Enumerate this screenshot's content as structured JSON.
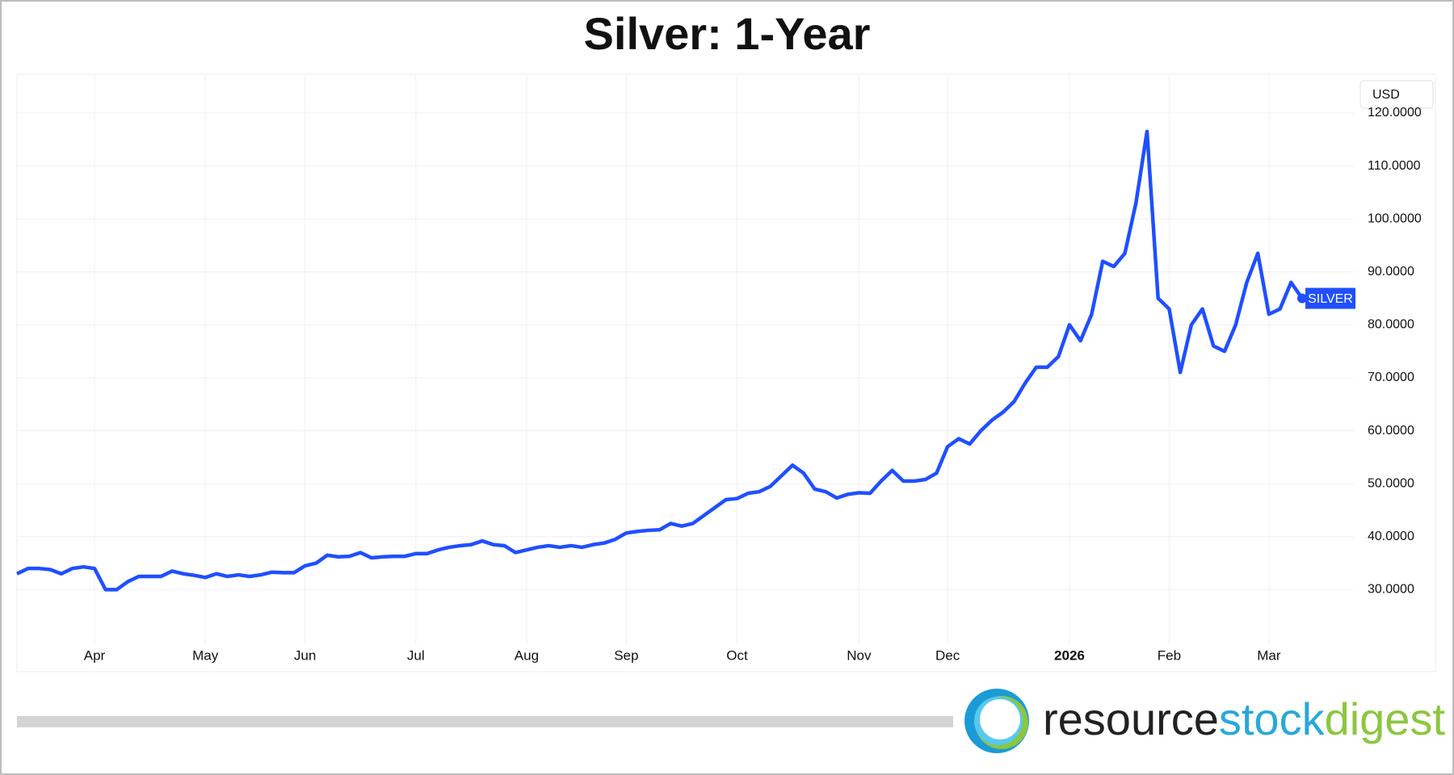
{
  "chart_data": {
    "type": "line",
    "title": "Silver: 1-Year",
    "categories": [
      null,
      null,
      null,
      null,
      null,
      null,
      null,
      "Apr",
      null,
      null,
      null,
      null,
      null,
      null,
      null,
      null,
      null,
      "May",
      null,
      null,
      null,
      null,
      null,
      null,
      null,
      null,
      "Jun",
      null,
      null,
      null,
      null,
      null,
      null,
      null,
      null,
      null,
      "Jul",
      null,
      null,
      null,
      null,
      null,
      null,
      null,
      null,
      null,
      "Aug",
      null,
      null,
      null,
      null,
      null,
      null,
      null,
      null,
      "Sep",
      null,
      null,
      null,
      null,
      null,
      null,
      null,
      null,
      null,
      "Oct",
      null,
      null,
      null,
      null,
      null,
      null,
      null,
      null,
      null,
      null,
      "Nov",
      null,
      null,
      null,
      null,
      null,
      null,
      null,
      "Dec",
      null,
      null,
      null,
      null,
      null,
      null,
      null,
      null,
      null,
      null,
      "2026",
      null,
      null,
      null,
      null,
      null,
      null,
      null,
      null,
      "Feb",
      null,
      null,
      null,
      null,
      null,
      null,
      null,
      null,
      "Mar",
      null,
      null,
      null
    ],
    "series": [
      {
        "name": "SILVER",
        "color": "#1f4fff",
        "values": [
          33,
          34,
          34,
          33.8,
          33,
          34,
          34.3,
          34,
          30,
          30,
          31.5,
          32.5,
          32.5,
          32.5,
          33.5,
          33,
          32.7,
          32.3,
          33,
          32.5,
          32.8,
          32.5,
          32.8,
          33.3,
          33.2,
          33.2,
          34.5,
          35,
          36.5,
          36.2,
          36.3,
          37,
          36,
          36.2,
          36.3,
          36.3,
          36.8,
          36.8,
          37.5,
          38,
          38.3,
          38.5,
          39.2,
          38.5,
          38.3,
          37,
          37.5,
          38,
          38.3,
          38,
          38.3,
          38,
          38.5,
          38.8,
          39.5,
          40.7,
          41,
          41.2,
          41.3,
          42.5,
          42,
          42.5,
          44,
          45.5,
          47,
          47.2,
          48.2,
          48.5,
          49.5,
          51.5,
          53.5,
          52,
          49,
          48.5,
          47.3,
          48,
          48.3,
          48.2,
          50.5,
          52.5,
          50.5,
          50.5,
          50.8,
          52,
          57,
          58.5,
          57.5,
          60,
          62,
          63.5,
          65.5,
          69,
          72,
          72,
          74,
          80,
          77,
          82,
          92,
          91,
          93.5,
          103,
          116.5,
          85,
          83,
          71,
          80,
          83,
          76,
          75,
          80,
          88,
          93.5,
          82,
          83,
          88,
          85
        ]
      }
    ],
    "ylim": [
      19.7,
      127
    ],
    "yticks": [
      {
        "value": 30,
        "label": "30.0000"
      },
      {
        "value": 40,
        "label": "40.0000"
      },
      {
        "value": 50,
        "label": "50.0000"
      },
      {
        "value": 60,
        "label": "60.0000"
      },
      {
        "value": 70,
        "label": "70.0000"
      },
      {
        "value": 80,
        "label": "80.0000"
      },
      {
        "value": 90,
        "label": "90.0000"
      },
      {
        "value": 100,
        "label": "100.0000"
      },
      {
        "value": 110,
        "label": "110.0000"
      },
      {
        "value": 120,
        "label": "120.0000"
      }
    ],
    "grid": true,
    "currency": "USD"
  },
  "branding": {
    "parts": [
      "resource",
      "stock",
      "digest"
    ]
  }
}
